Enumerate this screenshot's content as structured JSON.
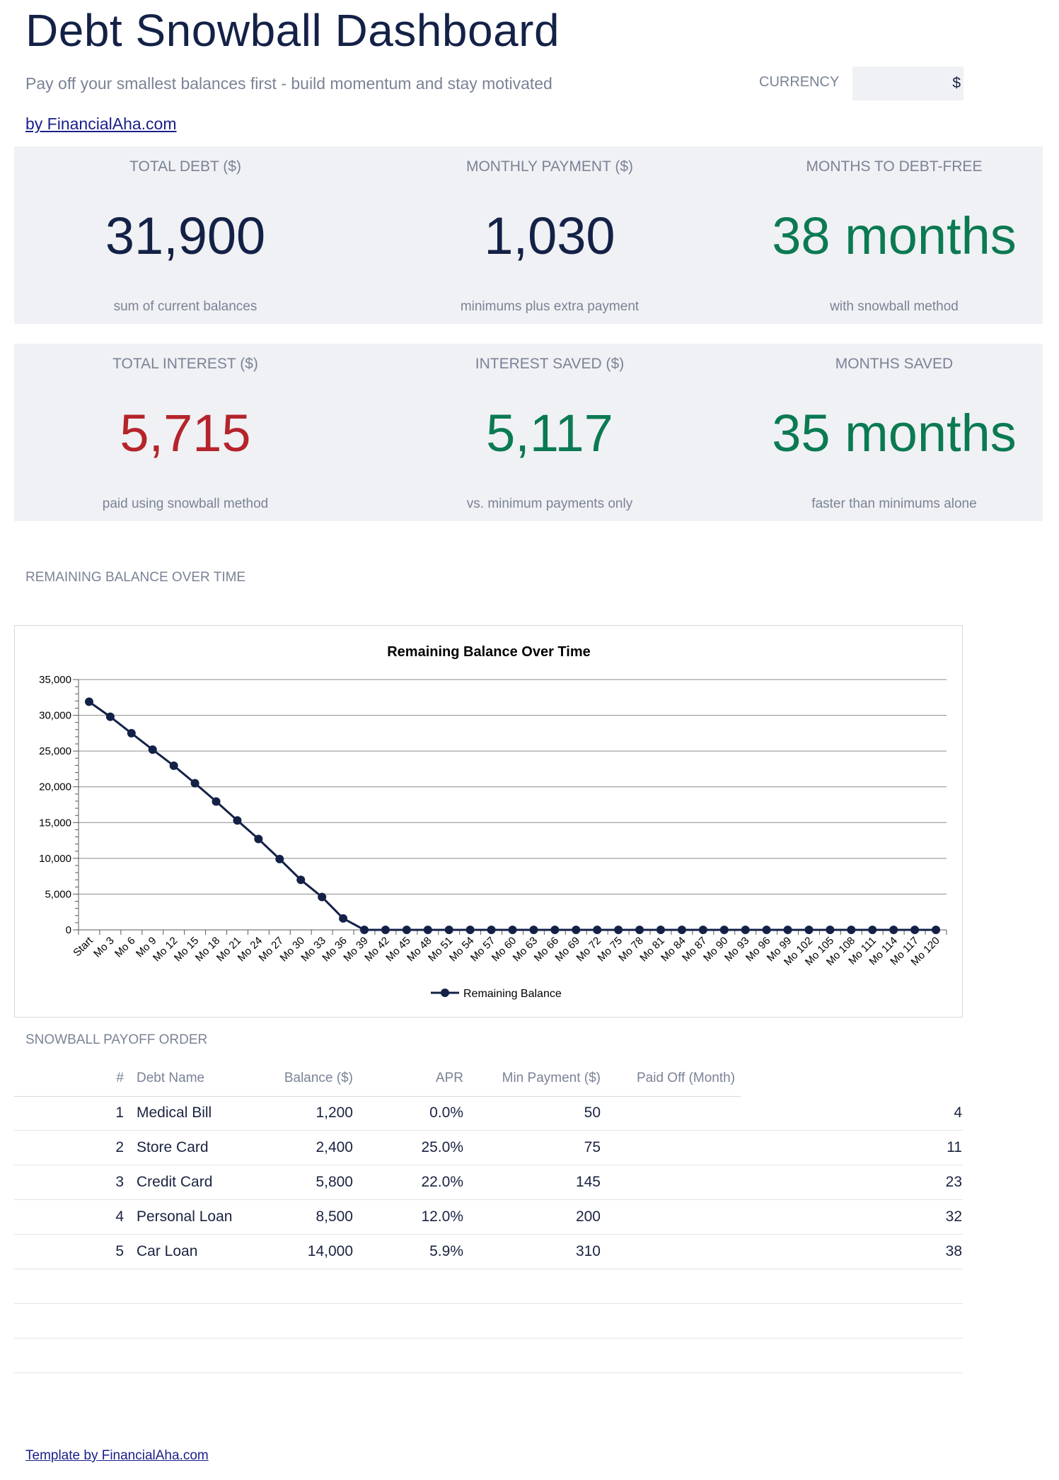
{
  "header": {
    "title": "Debt Snowball Dashboard",
    "subtitle": "Pay off your smallest balances first - build momentum and stay motivated",
    "currency_label": "CURRENCY",
    "currency_value": "$",
    "byline": "by FinancialAha.com"
  },
  "kpis_row1": [
    {
      "label": "TOTAL DEBT ($)",
      "value": "31,900",
      "note": "sum of current balances"
    },
    {
      "label": "MONTHLY PAYMENT ($)",
      "value": "1,030",
      "note": "minimums plus extra payment"
    },
    {
      "label": "MONTHS TO DEBT-FREE",
      "value": "38 months",
      "note": "with snowball method"
    }
  ],
  "kpis_row2": [
    {
      "label": "TOTAL INTEREST ($)",
      "value": "5,715",
      "note": "paid using snowball method"
    },
    {
      "label": "INTEREST SAVED ($)",
      "value": "5,117",
      "note": "vs. minimum payments only"
    },
    {
      "label": "MONTHS SAVED",
      "value": "35 months",
      "note": "faster than minimums alone"
    }
  ],
  "colors": {
    "dark_value": "#142147",
    "green_value": "#0b7a52",
    "red_value": "#b5242b",
    "panel_bg": "#f0f1f4",
    "line_color": "#142147"
  },
  "chart_section_title": "REMAINING BALANCE OVER TIME",
  "chart_data": {
    "type": "line",
    "title": "Remaining Balance Over Time",
    "xlabel": "",
    "ylabel": "",
    "ylim": [
      0,
      35000
    ],
    "yticks": [
      0,
      5000,
      10000,
      15000,
      20000,
      25000,
      30000,
      35000
    ],
    "ytick_labels": [
      "0",
      "5,000",
      "10,000",
      "15,000",
      "20,000",
      "25,000",
      "30,000",
      "35,000"
    ],
    "categories": [
      "Start",
      "Mo 3",
      "Mo 6",
      "Mo 9",
      "Mo 12",
      "Mo 15",
      "Mo 18",
      "Mo 21",
      "Mo 24",
      "Mo 27",
      "Mo 30",
      "Mo 33",
      "Mo 36",
      "Mo 39",
      "Mo 42",
      "Mo 45",
      "Mo 48",
      "Mo 51",
      "Mo 54",
      "Mo 57",
      "Mo 60",
      "Mo 63",
      "Mo 66",
      "Mo 69",
      "Mo 72",
      "Mo 75",
      "Mo 78",
      "Mo 81",
      "Mo 84",
      "Mo 87",
      "Mo 90",
      "Mo 93",
      "Mo 96",
      "Mo 99",
      "Mo 102",
      "Mo 105",
      "Mo 108",
      "Mo 111",
      "Mo 114",
      "Mo 117",
      "Mo 120"
    ],
    "series": [
      {
        "name": "Remaining Balance",
        "values": [
          31900,
          29800,
          27500,
          25200,
          22950,
          20500,
          17950,
          15300,
          12700,
          9900,
          7000,
          4600,
          1600,
          0,
          0,
          0,
          0,
          0,
          0,
          0,
          0,
          0,
          0,
          0,
          0,
          0,
          0,
          0,
          0,
          0,
          0,
          0,
          0,
          0,
          0,
          0,
          0,
          0,
          0,
          0,
          0
        ]
      }
    ],
    "grid": true,
    "legend": "bottom"
  },
  "table": {
    "section_title": "SNOWBALL PAYOFF ORDER",
    "headers": [
      "#",
      "Debt Name",
      "Balance ($)",
      "APR",
      "Min Payment ($)",
      "Paid Off (Month)"
    ],
    "rows": [
      {
        "num": "1",
        "name": "Medical Bill",
        "balance": "1,200",
        "apr": "0.0%",
        "min_payment": "50",
        "paid_off": "4"
      },
      {
        "num": "2",
        "name": "Store Card",
        "balance": "2,400",
        "apr": "25.0%",
        "min_payment": "75",
        "paid_off": "11"
      },
      {
        "num": "3",
        "name": "Credit Card",
        "balance": "5,800",
        "apr": "22.0%",
        "min_payment": "145",
        "paid_off": "23"
      },
      {
        "num": "4",
        "name": "Personal Loan",
        "balance": "8,500",
        "apr": "12.0%",
        "min_payment": "200",
        "paid_off": "32"
      },
      {
        "num": "5",
        "name": "Car Loan",
        "balance": "14,000",
        "apr": "5.9%",
        "min_payment": "310",
        "paid_off": "38"
      },
      {
        "num": "",
        "name": "",
        "balance": "",
        "apr": "",
        "min_payment": "",
        "paid_off": ""
      },
      {
        "num": "",
        "name": "",
        "balance": "",
        "apr": "",
        "min_payment": "",
        "paid_off": ""
      },
      {
        "num": "",
        "name": "",
        "balance": "",
        "apr": "",
        "min_payment": "",
        "paid_off": ""
      }
    ]
  },
  "footer": {
    "link": "Template by FinancialAha.com"
  }
}
